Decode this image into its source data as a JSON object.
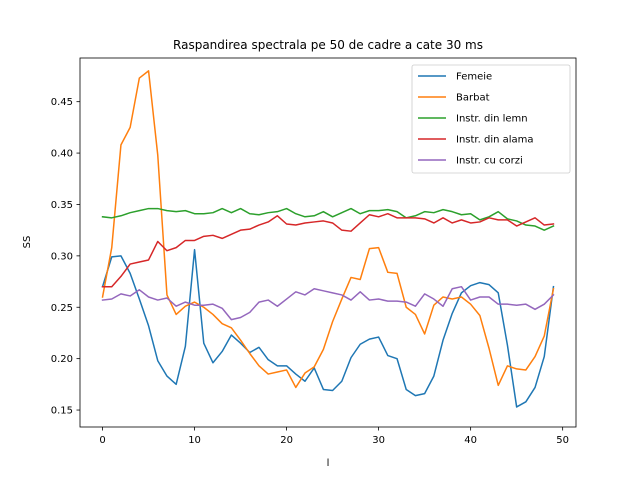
{
  "chart_data": {
    "type": "line",
    "title": "Raspandirea spectrala pe 50 de cadre a cate 30 ms",
    "xlabel": "l",
    "ylabel": "SS",
    "xlim": [
      -2.45,
      51.45
    ],
    "ylim": [
      0.1335,
      0.4925
    ],
    "xticks": [
      0,
      10,
      20,
      30,
      40,
      50
    ],
    "yticks": [
      0.15,
      0.2,
      0.25,
      0.3,
      0.35,
      0.4,
      0.45
    ],
    "ytick_labels": [
      "0.15",
      "0.20",
      "0.25",
      "0.30",
      "0.35",
      "0.40",
      "0.45"
    ],
    "grid": false,
    "legend_position": "top-right",
    "x": [
      0,
      1,
      2,
      3,
      4,
      5,
      6,
      7,
      8,
      9,
      10,
      11,
      12,
      13,
      14,
      15,
      16,
      17,
      18,
      19,
      20,
      21,
      22,
      23,
      24,
      25,
      26,
      27,
      28,
      29,
      30,
      31,
      32,
      33,
      34,
      35,
      36,
      37,
      38,
      39,
      40,
      41,
      42,
      43,
      44,
      45,
      46,
      47,
      48,
      49
    ],
    "series": [
      {
        "name": "Femeie",
        "color": "#1f77b4",
        "values": [
          0.27,
          0.299,
          0.3,
          0.283,
          0.258,
          0.232,
          0.198,
          0.183,
          0.175,
          0.212,
          0.306,
          0.215,
          0.196,
          0.207,
          0.223,
          0.215,
          0.206,
          0.211,
          0.199,
          0.193,
          0.193,
          0.185,
          0.178,
          0.191,
          0.17,
          0.169,
          0.178,
          0.201,
          0.214,
          0.219,
          0.221,
          0.203,
          0.2,
          0.17,
          0.164,
          0.166,
          0.183,
          0.218,
          0.244,
          0.264,
          0.271,
          0.274,
          0.272,
          0.264,
          0.213,
          0.153,
          0.158,
          0.172,
          0.202,
          0.27
        ]
      },
      {
        "name": "Barbat",
        "color": "#ff7f0e",
        "values": [
          0.26,
          0.308,
          0.408,
          0.425,
          0.473,
          0.48,
          0.398,
          0.262,
          0.243,
          0.251,
          0.255,
          0.25,
          0.243,
          0.234,
          0.23,
          0.218,
          0.205,
          0.193,
          0.185,
          0.187,
          0.189,
          0.172,
          0.186,
          0.192,
          0.209,
          0.236,
          0.258,
          0.279,
          0.277,
          0.307,
          0.308,
          0.284,
          0.283,
          0.25,
          0.243,
          0.224,
          0.252,
          0.26,
          0.258,
          0.26,
          0.253,
          0.242,
          0.21,
          0.174,
          0.193,
          0.19,
          0.189,
          0.202,
          0.222,
          0.268
        ]
      },
      {
        "name": "Instr. din lemn",
        "color": "#2ca02c",
        "values": [
          0.338,
          0.337,
          0.339,
          0.342,
          0.344,
          0.346,
          0.346,
          0.344,
          0.343,
          0.344,
          0.341,
          0.341,
          0.342,
          0.346,
          0.342,
          0.346,
          0.341,
          0.34,
          0.342,
          0.343,
          0.346,
          0.341,
          0.338,
          0.339,
          0.343,
          0.338,
          0.342,
          0.346,
          0.341,
          0.344,
          0.344,
          0.345,
          0.343,
          0.337,
          0.339,
          0.343,
          0.342,
          0.345,
          0.343,
          0.34,
          0.341,
          0.335,
          0.338,
          0.343,
          0.336,
          0.334,
          0.33,
          0.329,
          0.325,
          0.329
        ]
      },
      {
        "name": "Instr. din alama",
        "color": "#d62728",
        "values": [
          0.27,
          0.27,
          0.28,
          0.292,
          0.294,
          0.296,
          0.314,
          0.305,
          0.308,
          0.315,
          0.315,
          0.319,
          0.32,
          0.317,
          0.321,
          0.325,
          0.326,
          0.33,
          0.333,
          0.339,
          0.331,
          0.33,
          0.332,
          0.333,
          0.334,
          0.332,
          0.325,
          0.324,
          0.332,
          0.34,
          0.338,
          0.341,
          0.337,
          0.337,
          0.337,
          0.336,
          0.332,
          0.337,
          0.332,
          0.335,
          0.332,
          0.333,
          0.337,
          0.335,
          0.335,
          0.329,
          0.333,
          0.337,
          0.33,
          0.331
        ]
      },
      {
        "name": "Instr. cu corzi",
        "color": "#9467bd",
        "values": [
          0.257,
          0.258,
          0.263,
          0.261,
          0.267,
          0.26,
          0.257,
          0.259,
          0.251,
          0.255,
          0.252,
          0.252,
          0.253,
          0.249,
          0.238,
          0.24,
          0.245,
          0.255,
          0.257,
          0.251,
          0.258,
          0.265,
          0.262,
          0.268,
          0.266,
          0.264,
          0.262,
          0.257,
          0.265,
          0.257,
          0.258,
          0.256,
          0.256,
          0.255,
          0.251,
          0.263,
          0.258,
          0.251,
          0.268,
          0.27,
          0.257,
          0.26,
          0.26,
          0.253,
          0.253,
          0.252,
          0.253,
          0.248,
          0.253,
          0.262
        ]
      }
    ]
  }
}
